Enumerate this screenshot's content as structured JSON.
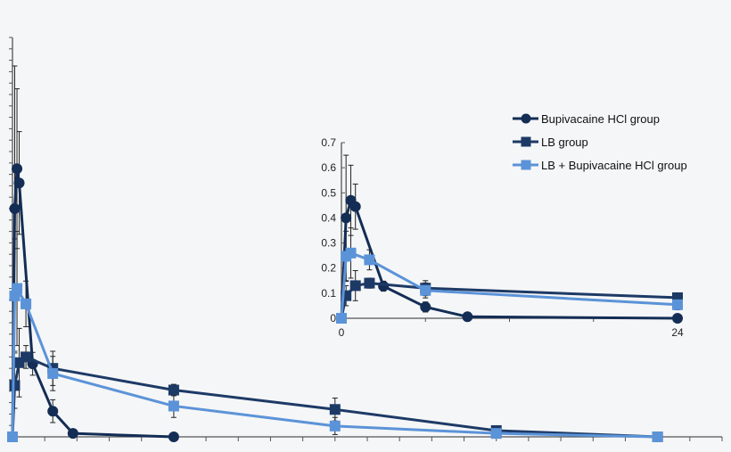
{
  "chart_data": {
    "type": "line",
    "title": "",
    "xlabel": "",
    "ylabel": "",
    "grid": false,
    "legend_position": "top-right",
    "series": [
      {
        "name": "Bupivacaine HCl group",
        "marker": "circle",
        "color": "#132d55",
        "x": [
          0,
          0.33,
          0.67,
          1,
          3,
          6,
          9,
          24
        ],
        "y": [
          0,
          0.4,
          0.47,
          0.445,
          0.128,
          0.045,
          0.006,
          0
        ],
        "err": [
          0,
          0.25,
          0.14,
          0.09,
          0.02,
          0.02,
          0,
          0
        ]
      },
      {
        "name": "LB group",
        "marker": "square",
        "color": "#1d3a66",
        "x": [
          0,
          0.33,
          1,
          2,
          6,
          24,
          48,
          72,
          96
        ],
        "y": [
          0,
          0.09,
          0.13,
          0.14,
          0.12,
          0.082,
          0.048,
          0.011,
          0
        ],
        "err": [
          0,
          0.04,
          0.06,
          0.02,
          0.03,
          0.01,
          0.02,
          0.005,
          0
        ]
      },
      {
        "name": "LB + Bupivacaine HCl group",
        "marker": "square",
        "color": "#5b93d8",
        "x": [
          0,
          0.33,
          0.67,
          2,
          6,
          24,
          48,
          72,
          96
        ],
        "y": [
          0,
          0.247,
          0.26,
          0.233,
          0.111,
          0.054,
          0.019,
          0.006,
          0
        ],
        "err": [
          0,
          0.1,
          0.1,
          0.04,
          0.03,
          0.02,
          0.015,
          0.004,
          0
        ]
      }
    ],
    "main_axes": {
      "xlim": [
        0,
        105.6
      ],
      "ylim": [
        0,
        0.7
      ],
      "x_tick_step": 4.8,
      "y_tick_step": 0.02,
      "tick_labels": false
    },
    "inset_axes": {
      "xlim": [
        0,
        24
      ],
      "ylim": [
        0,
        0.7
      ],
      "xticks": [
        0,
        6,
        12,
        18,
        24
      ],
      "x_tick_labels": [
        "0",
        "24"
      ],
      "y_tick_labels": [
        "0",
        "0.1",
        "0.2",
        "0.3",
        "0.4",
        "0.5",
        "0.6",
        "0.7"
      ]
    }
  }
}
